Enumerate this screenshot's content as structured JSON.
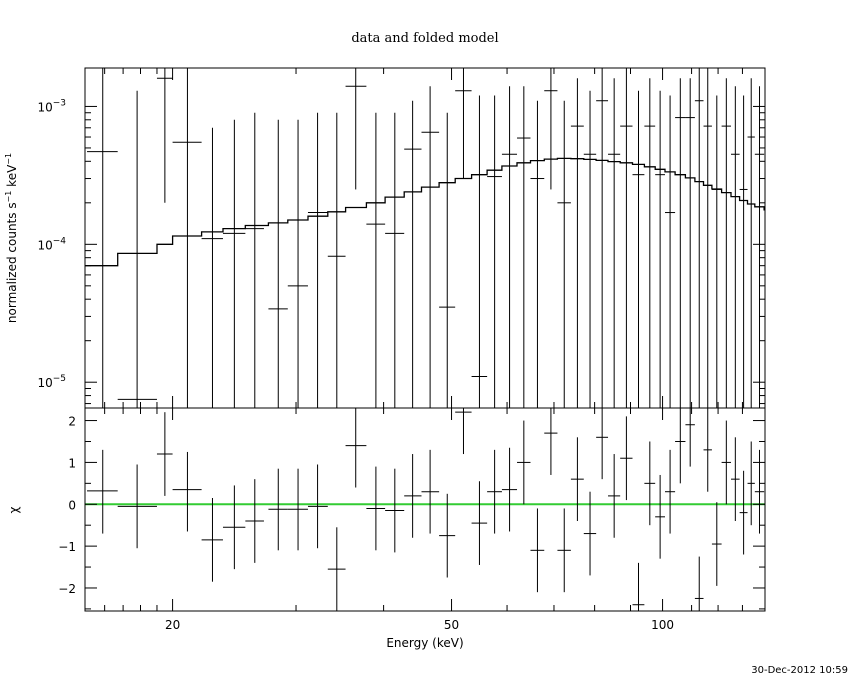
{
  "chart_data": {
    "type": "scatter",
    "title": "data and folded model",
    "xlabel": "Energy (keV)",
    "x_scale": "log",
    "xlim": [
      15,
      140
    ],
    "x_ticks": [
      {
        "value": 20,
        "label": "20"
      },
      {
        "value": 50,
        "label": "50"
      },
      {
        "value": 100,
        "label": "100"
      }
    ],
    "top_panel": {
      "ylabel": "normalized counts s^-1 keV^-1",
      "y_scale": "log",
      "ylim": [
        6.5e-06,
        0.0019
      ],
      "y_ticks": [
        {
          "value": 1e-05,
          "base": "10",
          "exp": "−5"
        },
        {
          "value": 0.0001,
          "base": "10",
          "exp": "−4"
        },
        {
          "value": 0.001,
          "base": "10",
          "exp": "−3"
        }
      ],
      "data": [
        {
          "x": 15.9,
          "xlo": 15.1,
          "xhi": 16.7,
          "y": 0.00047,
          "ylo": 6.5e-06,
          "yhi": 0.0019
        },
        {
          "x": 17.8,
          "xlo": 16.7,
          "xhi": 19.0,
          "y": 7.5e-06,
          "ylo": 6.5e-06,
          "yhi": 0.0013
        },
        {
          "x": 19.5,
          "xlo": 19.0,
          "xhi": 20.0,
          "y": 0.0016,
          "ylo": 0.0002,
          "yhi": 0.0019
        },
        {
          "x": 21.0,
          "xlo": 20.0,
          "xhi": 22.0,
          "y": 0.00055,
          "ylo": 6.5e-06,
          "yhi": 0.0019
        },
        {
          "x": 22.8,
          "xlo": 22.0,
          "xhi": 23.6,
          "y": 0.00011,
          "ylo": 6.5e-06,
          "yhi": 0.0007
        },
        {
          "x": 24.5,
          "xlo": 23.6,
          "xhi": 25.4,
          "y": 0.00012,
          "ylo": 6.5e-06,
          "yhi": 0.0008
        },
        {
          "x": 26.2,
          "xlo": 25.4,
          "xhi": 27.0,
          "y": 0.00013,
          "ylo": 6.5e-06,
          "yhi": 0.0009
        },
        {
          "x": 28.3,
          "xlo": 27.4,
          "xhi": 29.2,
          "y": 3.4e-05,
          "ylo": 6.5e-06,
          "yhi": 0.0008
        },
        {
          "x": 30.2,
          "xlo": 29.2,
          "xhi": 31.2,
          "y": 5e-05,
          "ylo": 6.5e-06,
          "yhi": 0.0008
        },
        {
          "x": 32.2,
          "xlo": 31.2,
          "xhi": 33.3,
          "y": 0.00017,
          "ylo": 6.5e-06,
          "yhi": 0.0009
        },
        {
          "x": 34.3,
          "xlo": 33.3,
          "xhi": 35.3,
          "y": 8.2e-05,
          "ylo": 6.5e-06,
          "yhi": 0.0009
        },
        {
          "x": 36.5,
          "xlo": 35.3,
          "xhi": 37.8,
          "y": 0.0014,
          "ylo": 0.00025,
          "yhi": 0.0019
        },
        {
          "x": 39.0,
          "xlo": 37.8,
          "xhi": 40.2,
          "y": 0.00014,
          "ylo": 6.5e-06,
          "yhi": 0.0009
        },
        {
          "x": 41.5,
          "xlo": 40.2,
          "xhi": 42.8,
          "y": 0.00012,
          "ylo": 6.5e-06,
          "yhi": 0.0009
        },
        {
          "x": 44.0,
          "xlo": 42.8,
          "xhi": 45.3,
          "y": 0.00049,
          "ylo": 6.5e-06,
          "yhi": 0.0011
        },
        {
          "x": 46.6,
          "xlo": 45.3,
          "xhi": 48.0,
          "y": 0.00065,
          "ylo": 6.5e-06,
          "yhi": 0.0014
        },
        {
          "x": 49.3,
          "xlo": 48.0,
          "xhi": 50.6,
          "y": 3.5e-05,
          "ylo": 6.5e-06,
          "yhi": 0.0009
        },
        {
          "x": 52.0,
          "xlo": 50.6,
          "xhi": 53.4,
          "y": 0.0013,
          "ylo": 0.0003,
          "yhi": 0.0019
        },
        {
          "x": 54.8,
          "xlo": 53.4,
          "xhi": 56.2,
          "y": 1.1e-05,
          "ylo": 6.5e-06,
          "yhi": 0.0012
        },
        {
          "x": 57.6,
          "xlo": 56.2,
          "xhi": 59.0,
          "y": 0.00031,
          "ylo": 6.5e-06,
          "yhi": 0.0012
        },
        {
          "x": 60.5,
          "xlo": 59.0,
          "xhi": 62.0,
          "y": 0.00045,
          "ylo": 6.5e-06,
          "yhi": 0.0014
        },
        {
          "x": 63.4,
          "xlo": 62.0,
          "xhi": 64.8,
          "y": 0.00059,
          "ylo": 6.5e-06,
          "yhi": 0.0014
        },
        {
          "x": 66.3,
          "xlo": 64.8,
          "xhi": 67.8,
          "y": 0.0003,
          "ylo": 6.5e-06,
          "yhi": 0.0011
        },
        {
          "x": 69.3,
          "xlo": 67.8,
          "xhi": 70.8,
          "y": 0.0013,
          "ylo": 0.00025,
          "yhi": 0.0019
        },
        {
          "x": 72.4,
          "xlo": 70.8,
          "xhi": 74.0,
          "y": 0.0002,
          "ylo": 6.5e-06,
          "yhi": 0.0011
        },
        {
          "x": 75.6,
          "xlo": 74.0,
          "xhi": 77.2,
          "y": 0.00072,
          "ylo": 6.5e-06,
          "yhi": 0.0016
        },
        {
          "x": 78.8,
          "xlo": 77.2,
          "xhi": 80.4,
          "y": 0.00045,
          "ylo": 6.5e-06,
          "yhi": 0.0013
        },
        {
          "x": 82.0,
          "xlo": 80.4,
          "xhi": 83.6,
          "y": 0.0011,
          "ylo": 6.5e-06,
          "yhi": 0.0019
        },
        {
          "x": 85.3,
          "xlo": 83.6,
          "xhi": 87.0,
          "y": 0.00045,
          "ylo": 6.5e-06,
          "yhi": 0.0016
        },
        {
          "x": 88.8,
          "xlo": 87.0,
          "xhi": 90.6,
          "y": 0.00072,
          "ylo": 6.5e-06,
          "yhi": 0.0019
        },
        {
          "x": 92.4,
          "xlo": 90.6,
          "xhi": 94.2,
          "y": 0.00032,
          "ylo": 6.5e-06,
          "yhi": 0.0013
        },
        {
          "x": 95.9,
          "xlo": 94.2,
          "xhi": 97.6,
          "y": 0.00072,
          "ylo": 6.5e-06,
          "yhi": 0.0016
        },
        {
          "x": 99.2,
          "xlo": 97.6,
          "xhi": 100.8,
          "y": 0.00032,
          "ylo": 6.5e-06,
          "yhi": 0.0013
        },
        {
          "x": 102.5,
          "xlo": 100.8,
          "xhi": 104.2,
          "y": 0.00017,
          "ylo": 6.5e-06,
          "yhi": 0.0012
        },
        {
          "x": 106.0,
          "xlo": 104.2,
          "xhi": 107.8,
          "y": 0.00083,
          "ylo": 6.5e-06,
          "yhi": 0.0016
        },
        {
          "x": 109.5,
          "xlo": 107.8,
          "xhi": 111.2,
          "y": 0.00083,
          "ylo": 6.5e-06,
          "yhi": 0.0016
        },
        {
          "x": 112.8,
          "xlo": 111.2,
          "xhi": 114.4,
          "y": 0.0011,
          "ylo": 6.5e-06,
          "yhi": 0.0019
        },
        {
          "x": 116.0,
          "xlo": 114.4,
          "xhi": 117.6,
          "y": 0.00072,
          "ylo": 6.5e-06,
          "yhi": 0.0019
        },
        {
          "x": 119.5,
          "xlo": 117.6,
          "xhi": 121.4,
          "y": 0.00025,
          "ylo": 6.5e-06,
          "yhi": 0.0012
        },
        {
          "x": 123.3,
          "xlo": 121.4,
          "xhi": 125.2,
          "y": 0.00072,
          "ylo": 6.5e-06,
          "yhi": 0.0016
        },
        {
          "x": 127.0,
          "xlo": 125.2,
          "xhi": 128.8,
          "y": 0.00045,
          "ylo": 6.5e-06,
          "yhi": 0.0014
        },
        {
          "x": 130.5,
          "xlo": 128.8,
          "xhi": 132.2,
          "y": 0.00025,
          "ylo": 6.5e-06,
          "yhi": 0.0012
        },
        {
          "x": 133.8,
          "xlo": 132.2,
          "xhi": 135.4,
          "y": 0.0006,
          "ylo": 6.5e-06,
          "yhi": 0.0016
        },
        {
          "x": 137.5,
          "xlo": 135.4,
          "xhi": 139.6,
          "y": 0.00045,
          "ylo": 6.5e-06,
          "yhi": 0.0014
        }
      ],
      "model_step": [
        [
          15.0,
          7e-05
        ],
        [
          16.7,
          8.6e-05
        ],
        [
          19.0,
          0.0001
        ],
        [
          20.0,
          0.000115
        ],
        [
          22.0,
          0.000123
        ],
        [
          23.6,
          0.00013
        ],
        [
          25.4,
          0.000137
        ],
        [
          27.4,
          0.000143
        ],
        [
          29.2,
          0.00015
        ],
        [
          31.2,
          0.00016
        ],
        [
          33.3,
          0.000172
        ],
        [
          35.3,
          0.000185
        ],
        [
          37.8,
          0.0002
        ],
        [
          40.2,
          0.00022
        ],
        [
          42.8,
          0.00024
        ],
        [
          45.3,
          0.00026
        ],
        [
          48.0,
          0.00028
        ],
        [
          50.6,
          0.0003
        ],
        [
          53.4,
          0.00032
        ],
        [
          56.2,
          0.000345
        ],
        [
          59.0,
          0.00037
        ],
        [
          62.0,
          0.00039
        ],
        [
          64.8,
          0.000405
        ],
        [
          67.8,
          0.000415
        ],
        [
          70.8,
          0.00042
        ],
        [
          74.0,
          0.000418
        ],
        [
          77.2,
          0.000413
        ],
        [
          80.4,
          0.000406
        ],
        [
          83.6,
          0.000398
        ],
        [
          87.0,
          0.00039
        ],
        [
          90.6,
          0.00038
        ],
        [
          94.2,
          0.000365
        ],
        [
          97.6,
          0.00035
        ],
        [
          100.8,
          0.000335
        ],
        [
          104.2,
          0.00032
        ],
        [
          107.8,
          0.000303
        ],
        [
          111.2,
          0.000285
        ],
        [
          114.4,
          0.000268
        ],
        [
          117.6,
          0.000252
        ],
        [
          121.4,
          0.000237
        ],
        [
          125.2,
          0.000222
        ],
        [
          128.8,
          0.000208
        ],
        [
          132.2,
          0.000196
        ],
        [
          135.4,
          0.000187
        ],
        [
          139.6,
          0.000178
        ]
      ]
    },
    "bottom_panel": {
      "ylabel": "χ",
      "y_scale": "linear",
      "ylim": [
        -2.55,
        2.3
      ],
      "y_ticks": [
        {
          "value": 2,
          "label": "2"
        },
        {
          "value": 1,
          "label": "1"
        },
        {
          "value": 0,
          "label": "0"
        },
        {
          "value": -1,
          "label": "−1"
        },
        {
          "value": -2,
          "label": "−2"
        }
      ],
      "zero_line": 0,
      "zero_line_color": "#33cc33",
      "data": [
        {
          "x": 15.9,
          "xlo": 15.1,
          "xhi": 16.7,
          "y": 0.32,
          "ylo": -0.7,
          "yhi": 1.3
        },
        {
          "x": 17.8,
          "xlo": 16.7,
          "xhi": 19.0,
          "y": -0.05,
          "ylo": -1.05,
          "yhi": 0.95
        },
        {
          "x": 19.5,
          "xlo": 19.0,
          "xhi": 20.0,
          "y": 1.2,
          "ylo": 0.2,
          "yhi": 2.2
        },
        {
          "x": 21.0,
          "xlo": 20.0,
          "xhi": 22.0,
          "y": 0.35,
          "ylo": -0.65,
          "yhi": 1.25
        },
        {
          "x": 22.8,
          "xlo": 22.0,
          "xhi": 23.6,
          "y": -0.85,
          "ylo": -1.85,
          "yhi": 0.15
        },
        {
          "x": 24.5,
          "xlo": 23.6,
          "xhi": 25.4,
          "y": -0.55,
          "ylo": -1.55,
          "yhi": 0.45
        },
        {
          "x": 26.2,
          "xlo": 25.4,
          "xhi": 27.0,
          "y": -0.4,
          "ylo": -1.4,
          "yhi": 0.6
        },
        {
          "x": 28.3,
          "xlo": 27.4,
          "xhi": 29.2,
          "y": -0.12,
          "ylo": -1.1,
          "yhi": 0.85
        },
        {
          "x": 30.2,
          "xlo": 29.2,
          "xhi": 31.2,
          "y": -0.12,
          "ylo": -1.1,
          "yhi": 0.85
        },
        {
          "x": 32.2,
          "xlo": 31.2,
          "xhi": 33.3,
          "y": -0.05,
          "ylo": -1.05,
          "yhi": 0.95
        },
        {
          "x": 34.3,
          "xlo": 33.3,
          "xhi": 35.3,
          "y": -1.55,
          "ylo": -2.55,
          "yhi": -0.55
        },
        {
          "x": 36.5,
          "xlo": 35.3,
          "xhi": 37.8,
          "y": 1.4,
          "ylo": 0.4,
          "yhi": 2.3
        },
        {
          "x": 39.0,
          "xlo": 37.8,
          "xhi": 40.2,
          "y": -0.1,
          "ylo": -1.1,
          "yhi": 0.9
        },
        {
          "x": 41.5,
          "xlo": 40.2,
          "xhi": 42.8,
          "y": -0.15,
          "ylo": -1.15,
          "yhi": 0.85
        },
        {
          "x": 44.0,
          "xlo": 42.8,
          "xhi": 45.3,
          "y": 0.2,
          "ylo": -0.8,
          "yhi": 1.2
        },
        {
          "x": 46.6,
          "xlo": 45.3,
          "xhi": 48.0,
          "y": 0.3,
          "ylo": -0.7,
          "yhi": 1.3
        },
        {
          "x": 49.3,
          "xlo": 48.0,
          "xhi": 50.6,
          "y": -0.75,
          "ylo": -1.75,
          "yhi": 0.25
        },
        {
          "x": 52.0,
          "xlo": 50.6,
          "xhi": 53.4,
          "y": 2.2,
          "ylo": 1.2,
          "yhi": 2.3
        },
        {
          "x": 54.8,
          "xlo": 53.4,
          "xhi": 56.2,
          "y": -0.45,
          "ylo": -1.45,
          "yhi": 0.55
        },
        {
          "x": 57.6,
          "xlo": 56.2,
          "xhi": 59.0,
          "y": 0.3,
          "ylo": -0.7,
          "yhi": 1.3
        },
        {
          "x": 60.5,
          "xlo": 59.0,
          "xhi": 62.0,
          "y": 0.35,
          "ylo": -0.65,
          "yhi": 1.35
        },
        {
          "x": 63.4,
          "xlo": 62.0,
          "xhi": 64.8,
          "y": 1.0,
          "ylo": 0.0,
          "yhi": 2.0
        },
        {
          "x": 66.3,
          "xlo": 64.8,
          "xhi": 67.8,
          "y": -1.1,
          "ylo": -2.1,
          "yhi": -0.1
        },
        {
          "x": 69.3,
          "xlo": 67.8,
          "xhi": 70.8,
          "y": 1.7,
          "ylo": 0.7,
          "yhi": 2.3
        },
        {
          "x": 72.4,
          "xlo": 70.8,
          "xhi": 74.0,
          "y": -1.1,
          "ylo": -2.1,
          "yhi": -0.1
        },
        {
          "x": 75.6,
          "xlo": 74.0,
          "xhi": 77.2,
          "y": 0.6,
          "ylo": -0.4,
          "yhi": 1.6
        },
        {
          "x": 78.8,
          "xlo": 77.2,
          "xhi": 80.4,
          "y": -0.7,
          "ylo": -1.7,
          "yhi": 0.3
        },
        {
          "x": 82.0,
          "xlo": 80.4,
          "xhi": 83.6,
          "y": 1.6,
          "ylo": 0.6,
          "yhi": 2.3
        },
        {
          "x": 85.3,
          "xlo": 83.6,
          "xhi": 87.0,
          "y": 0.2,
          "ylo": -0.8,
          "yhi": 1.2
        },
        {
          "x": 88.8,
          "xlo": 87.0,
          "xhi": 90.6,
          "y": 1.1,
          "ylo": 0.1,
          "yhi": 2.1
        },
        {
          "x": 92.4,
          "xlo": 90.6,
          "xhi": 94.2,
          "y": -2.4,
          "ylo": -2.55,
          "yhi": -1.4
        },
        {
          "x": 95.9,
          "xlo": 94.2,
          "xhi": 97.6,
          "y": 0.5,
          "ylo": -0.5,
          "yhi": 1.5
        },
        {
          "x": 99.2,
          "xlo": 97.6,
          "xhi": 100.8,
          "y": -0.3,
          "ylo": -1.3,
          "yhi": 0.7
        },
        {
          "x": 102.5,
          "xlo": 100.8,
          "xhi": 104.2,
          "y": 0.3,
          "ylo": -0.7,
          "yhi": 1.3
        },
        {
          "x": 106.0,
          "xlo": 104.2,
          "xhi": 107.8,
          "y": 1.5,
          "ylo": 0.5,
          "yhi": 2.3
        },
        {
          "x": 109.5,
          "xlo": 107.8,
          "xhi": 111.2,
          "y": 1.9,
          "ylo": 0.9,
          "yhi": 2.3
        },
        {
          "x": 112.8,
          "xlo": 111.2,
          "xhi": 114.4,
          "y": -2.25,
          "ylo": -2.55,
          "yhi": -1.25
        },
        {
          "x": 116.0,
          "xlo": 114.4,
          "xhi": 117.6,
          "y": 1.3,
          "ylo": 0.3,
          "yhi": 2.3
        },
        {
          "x": 119.5,
          "xlo": 117.6,
          "xhi": 121.4,
          "y": -0.95,
          "ylo": -1.95,
          "yhi": 0.05
        },
        {
          "x": 123.3,
          "xlo": 121.4,
          "xhi": 125.2,
          "y": 1.0,
          "ylo": 0.0,
          "yhi": 2.0
        },
        {
          "x": 127.0,
          "xlo": 125.2,
          "xhi": 128.8,
          "y": 0.6,
          "ylo": -0.4,
          "yhi": 1.6
        },
        {
          "x": 130.5,
          "xlo": 128.8,
          "xhi": 132.2,
          "y": -0.2,
          "ylo": -1.2,
          "yhi": 0.8
        },
        {
          "x": 133.8,
          "xlo": 132.2,
          "xhi": 135.4,
          "y": 0.5,
          "ylo": -0.5,
          "yhi": 1.5
        },
        {
          "x": 137.5,
          "xlo": 135.4,
          "xhi": 139.6,
          "y": 0.3,
          "ylo": -0.7,
          "yhi": 1.3
        }
      ]
    }
  },
  "timestamp": "30-Dec-2012 10:59"
}
